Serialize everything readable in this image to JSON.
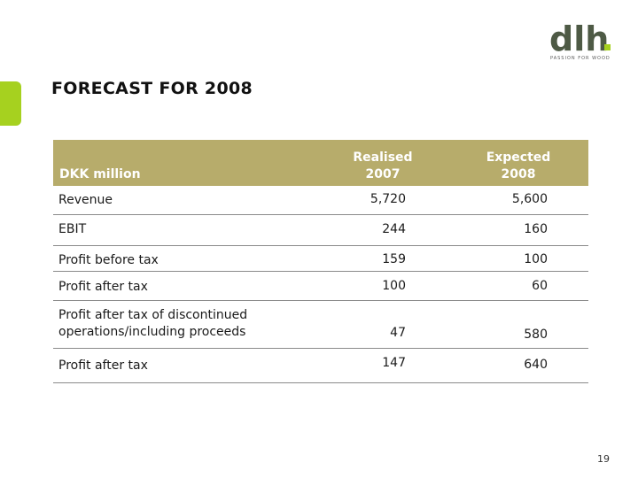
{
  "logo": {
    "text": "dlh",
    "tagline": "PASSION FOR WOOD"
  },
  "title": "FORECAST FOR 2008",
  "table": {
    "label_header": "DKK million",
    "col1_line1": "Realised",
    "col1_line2": "2007",
    "col2_line1": "Expected",
    "col2_line2": "2008",
    "rows": [
      {
        "label": "Revenue",
        "realised": "5,720",
        "expected": "5,600"
      },
      {
        "label": "EBIT",
        "realised": "244",
        "expected": "160"
      },
      {
        "label": "Profit before tax",
        "realised": "159",
        "expected": "100"
      },
      {
        "label": "Profit after tax",
        "realised": "100",
        "expected": "60"
      },
      {
        "label_line1": "Profit after tax of discontinued",
        "label_line2": "operations/including proceeds",
        "realised": "47",
        "expected": "580"
      },
      {
        "label": "Profit after tax",
        "realised": "147",
        "expected": "640"
      }
    ]
  },
  "page_number": "19",
  "colors": {
    "accent": "#a6d11f",
    "header_bg": "#b7ac6b",
    "logo": "#4e5a45"
  }
}
